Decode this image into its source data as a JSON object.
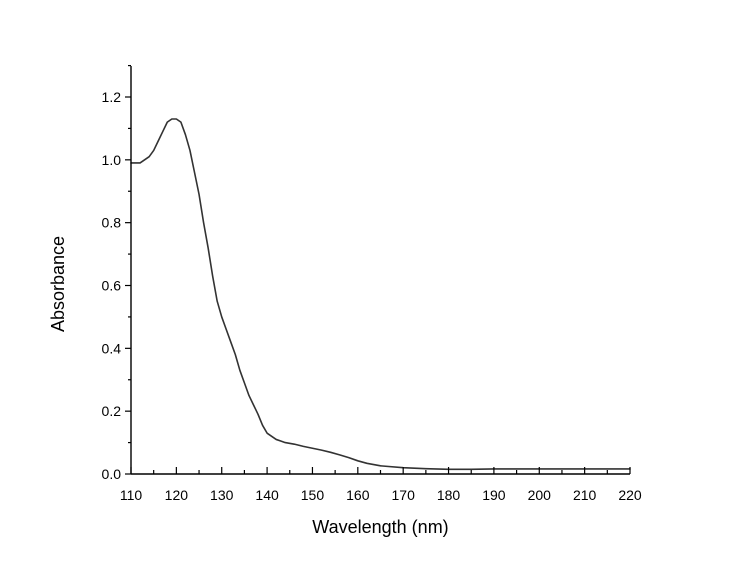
{
  "chart_data": {
    "type": "line",
    "title": "",
    "xlabel": "Wavelength (nm)",
    "ylabel": "Absorbance",
    "xlim": [
      110,
      220
    ],
    "ylim": [
      0,
      1.3
    ],
    "x_ticks": [
      110,
      120,
      130,
      140,
      150,
      160,
      170,
      180,
      190,
      200,
      210,
      220
    ],
    "x_tick_labels": [
      "110",
      "120",
      "130",
      "140",
      "150",
      "160",
      "170",
      "180",
      "190",
      "200",
      "210",
      "220"
    ],
    "y_ticks": [
      0,
      0.2,
      0.4,
      0.6,
      0.8,
      1.0,
      1.2
    ],
    "y_tick_labels": [
      "0.0",
      "0.2",
      "0.4",
      "0.6",
      "0.8",
      "1.0",
      "1.2"
    ],
    "grid": false,
    "legend": "none",
    "colors": {
      "line": "#333333",
      "axis": "#000000"
    },
    "series": [
      {
        "x": [
          110,
          112,
          113,
          114,
          115,
          116,
          117,
          118,
          119,
          120,
          121,
          122,
          123,
          124,
          125,
          126,
          127,
          128,
          129,
          130,
          131,
          132,
          133,
          134,
          135,
          136,
          137,
          138,
          139,
          140,
          141,
          142,
          143,
          144,
          146,
          148,
          150,
          152,
          154,
          156,
          158,
          160,
          162,
          165,
          170,
          175,
          180,
          185,
          190,
          200,
          210,
          220
        ],
        "y": [
          0.99,
          0.99,
          1.0,
          1.01,
          1.03,
          1.06,
          1.09,
          1.12,
          1.13,
          1.13,
          1.12,
          1.08,
          1.03,
          0.96,
          0.89,
          0.8,
          0.72,
          0.63,
          0.55,
          0.5,
          0.46,
          0.42,
          0.38,
          0.33,
          0.29,
          0.25,
          0.22,
          0.19,
          0.155,
          0.13,
          0.12,
          0.11,
          0.105,
          0.1,
          0.095,
          0.088,
          0.082,
          0.076,
          0.069,
          0.061,
          0.052,
          0.042,
          0.034,
          0.026,
          0.02,
          0.017,
          0.015,
          0.015,
          0.016,
          0.016,
          0.016,
          0.016
        ]
      }
    ]
  }
}
